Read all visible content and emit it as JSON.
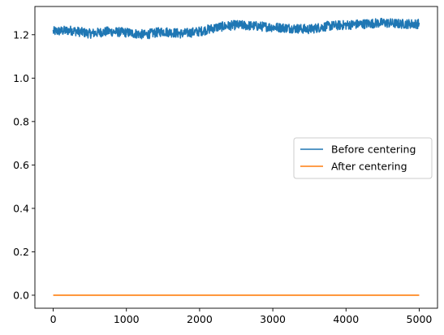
{
  "chart_data": {
    "type": "line",
    "title": "",
    "xlabel": "",
    "ylabel": "",
    "xlim": [
      -250,
      5250
    ],
    "ylim": [
      -0.06,
      1.33
    ],
    "xticks": [
      0,
      1000,
      2000,
      3000,
      4000,
      5000
    ],
    "yticks": [
      0.0,
      0.2,
      0.4,
      0.6,
      0.8,
      1.0,
      1.2
    ],
    "xtick_labels": [
      "0",
      "1000",
      "2000",
      "3000",
      "4000",
      "5000"
    ],
    "ytick_labels": [
      "0.0",
      "0.2",
      "0.4",
      "0.6",
      "0.8",
      "1.0",
      "1.2"
    ],
    "grid": false,
    "legend_position": "center-right",
    "series": [
      {
        "name": "Before centering",
        "color": "#1f77b4",
        "x": [
          0,
          250,
          500,
          750,
          1000,
          1250,
          1500,
          1750,
          2000,
          2250,
          2500,
          2750,
          3000,
          3250,
          3500,
          3750,
          4000,
          4250,
          4500,
          4750,
          5000
        ],
        "y": [
          1.215,
          1.22,
          1.205,
          1.215,
          1.21,
          1.2,
          1.215,
          1.205,
          1.215,
          1.235,
          1.245,
          1.24,
          1.235,
          1.23,
          1.225,
          1.24,
          1.245,
          1.25,
          1.255,
          1.25,
          1.25
        ],
        "noise_amplitude": 0.022
      },
      {
        "name": "After centering",
        "color": "#ff7f0e",
        "x": [
          0,
          5000
        ],
        "y": [
          0.0,
          0.0
        ]
      }
    ]
  }
}
